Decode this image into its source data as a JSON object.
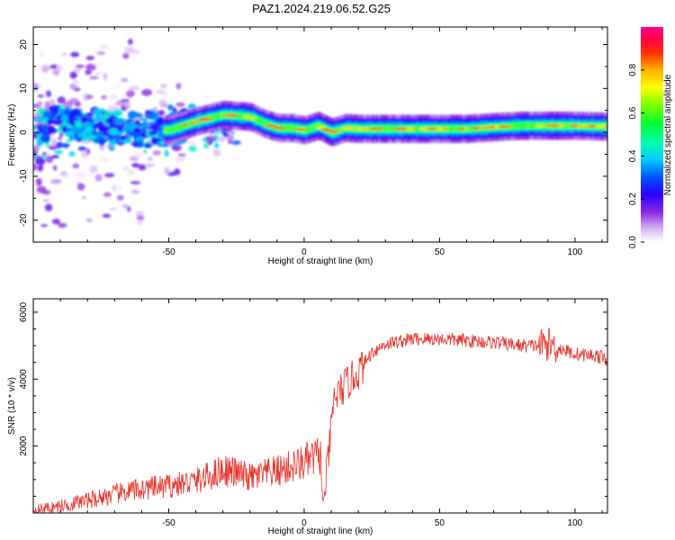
{
  "title": "PAZ1.2024.219.06.52.G25",
  "chart_data": [
    {
      "type": "heatmap",
      "xlabel": "Height of straight line (km)",
      "ylabel": "Frequency (Hz)",
      "xlim": [
        -100,
        112
      ],
      "ylim": [
        -25,
        24
      ],
      "xticks": [
        -50,
        0,
        50,
        100
      ],
      "yticks": [
        -20,
        -10,
        0,
        10,
        20
      ],
      "colorbar": {
        "label": "Normalized spectral amplitude",
        "range": [
          0,
          1
        ],
        "ticks": [
          "0.0",
          "0.2",
          "0.4",
          "0.6",
          "0.8"
        ],
        "tick_values": [
          0,
          0.2,
          0.4,
          0.6,
          0.8
        ]
      },
      "ridge": {
        "description_points": [
          [
            -100,
            1.5
          ],
          [
            -80,
            1.5
          ],
          [
            -60,
            0.5
          ],
          [
            -50,
            0.5
          ],
          [
            -40,
            2.5
          ],
          [
            -30,
            4
          ],
          [
            -20,
            3.5
          ],
          [
            -15,
            2
          ],
          [
            -10,
            1
          ],
          [
            -5,
            1
          ],
          [
            0,
            0.5
          ],
          [
            5,
            1.5
          ],
          [
            10,
            0
          ],
          [
            15,
            1
          ],
          [
            20,
            0.8
          ],
          [
            30,
            0.8
          ],
          [
            40,
            0.8
          ],
          [
            50,
            0.8
          ],
          [
            60,
            0.8
          ],
          [
            70,
            1.2
          ],
          [
            80,
            1.5
          ],
          [
            90,
            1.5
          ],
          [
            100,
            1.5
          ],
          [
            112,
            1.3
          ]
        ]
      }
    },
    {
      "type": "line",
      "xlabel": "Height of straight line (km)",
      "ylabel": "SNR (10 * v/v)",
      "xlim": [
        -100,
        112
      ],
      "ylim": [
        0,
        6400
      ],
      "xticks": [
        -50,
        0,
        50,
        100
      ],
      "yticks": [
        2000,
        4000,
        6000
      ],
      "color": "#e8322a",
      "trend": [
        [
          -100,
          80
        ],
        [
          -90,
          200
        ],
        [
          -80,
          380
        ],
        [
          -70,
          560
        ],
        [
          -60,
          720
        ],
        [
          -50,
          800
        ],
        [
          -40,
          950
        ],
        [
          -35,
          1100
        ],
        [
          -30,
          1300
        ],
        [
          -25,
          1200
        ],
        [
          -20,
          1050
        ],
        [
          -10,
          1250
        ],
        [
          0,
          1500
        ],
        [
          6,
          1750
        ],
        [
          7,
          150
        ],
        [
          9,
          1700
        ],
        [
          11,
          3400
        ],
        [
          15,
          3800
        ],
        [
          20,
          4200
        ],
        [
          25,
          4800
        ],
        [
          30,
          5050
        ],
        [
          40,
          5200
        ],
        [
          50,
          5200
        ],
        [
          60,
          5150
        ],
        [
          70,
          5100
        ],
        [
          80,
          5000
        ],
        [
          85,
          5000
        ],
        [
          90,
          5050
        ],
        [
          95,
          4900
        ],
        [
          100,
          4750
        ],
        [
          108,
          4700
        ],
        [
          112,
          4600
        ]
      ]
    }
  ]
}
